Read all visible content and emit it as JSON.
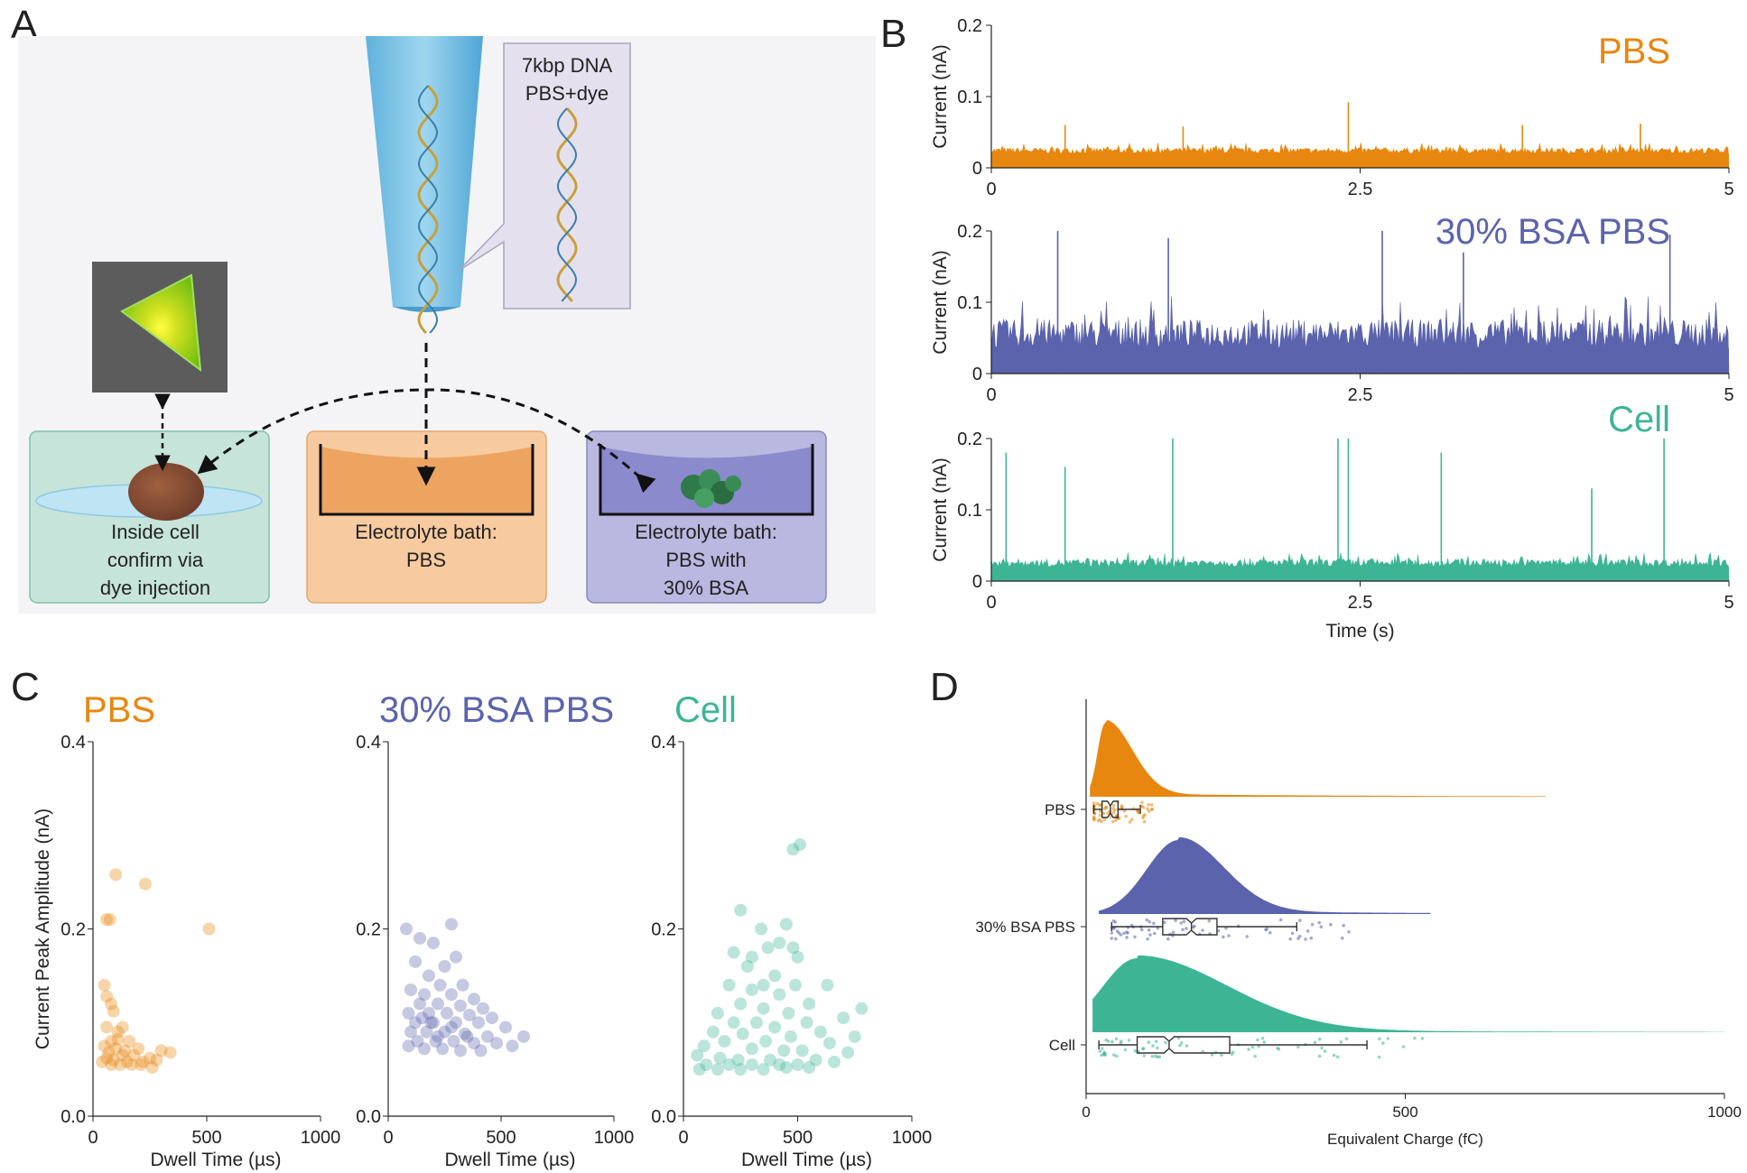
{
  "panel_labels": [
    "A",
    "B",
    "C",
    "D"
  ],
  "colors": {
    "PBS": "#e8870f",
    "BSA": "#5b63ad",
    "Cell": "#3db595"
  },
  "schematic": {
    "callout_lines": [
      "7kbp DNA",
      "PBS+dye"
    ],
    "boxes": [
      {
        "lines": [
          "Inside cell",
          "confirm via",
          "dye injection"
        ],
        "fill": "#c6e4d9",
        "border": "#7fc2a8"
      },
      {
        "lines": [
          "Electrolyte bath:",
          "PBS"
        ],
        "fill": "#f7caa0",
        "border": "#e7a86a"
      },
      {
        "lines": [
          "Electrolyte bath:",
          "PBS with",
          "30% BSA"
        ],
        "fill": "#b8b8e0",
        "border": "#8888c0"
      }
    ]
  },
  "chart_data": [
    {
      "panel": "B",
      "type": "line",
      "title": "PBS",
      "xlabel": "",
      "ylabel": "Current (nA)",
      "xlim": [
        0,
        5
      ],
      "ylim": [
        0,
        0.2
      ],
      "xticks": [
        "0",
        "2.5",
        "5"
      ],
      "yticks": [
        "0",
        "0.1",
        "0.2"
      ],
      "baseline_nA": 0.02,
      "noise_peak_nA": 0.035,
      "events": [
        {
          "t": 2.42,
          "i": 0.092
        },
        {
          "t": 0.5,
          "i": 0.06
        },
        {
          "t": 1.3,
          "i": 0.058
        },
        {
          "t": 3.6,
          "i": 0.06
        },
        {
          "t": 4.4,
          "i": 0.062
        }
      ]
    },
    {
      "panel": "B",
      "type": "line",
      "title": "30% BSA PBS",
      "xlabel": "",
      "ylabel": "Current (nA)",
      "xlim": [
        0,
        5
      ],
      "ylim": [
        0,
        0.2
      ],
      "xticks": [
        "0",
        "2.5",
        "5"
      ],
      "yticks": [
        "0",
        "0.1",
        "0.2"
      ],
      "baseline_nA": 0.035,
      "noise_peak_nA": 0.11,
      "events": [
        {
          "t": 0.45,
          "i": 0.2
        },
        {
          "t": 1.2,
          "i": 0.19
        },
        {
          "t": 2.65,
          "i": 0.2
        },
        {
          "t": 4.6,
          "i": 0.195
        },
        {
          "t": 3.2,
          "i": 0.17
        }
      ]
    },
    {
      "panel": "B",
      "type": "line",
      "title": "Cell",
      "xlabel": "Time (s)",
      "ylabel": "Current (nA)",
      "xlim": [
        0,
        5
      ],
      "ylim": [
        0,
        0.2
      ],
      "xticks": [
        "0",
        "2.5",
        "5"
      ],
      "yticks": [
        "0",
        "0.1",
        "0.2"
      ],
      "baseline_nA": 0.02,
      "noise_peak_nA": 0.04,
      "events": [
        {
          "t": 0.1,
          "i": 0.18
        },
        {
          "t": 1.23,
          "i": 0.2
        },
        {
          "t": 2.35,
          "i": 0.2
        },
        {
          "t": 2.42,
          "i": 0.2
        },
        {
          "t": 3.05,
          "i": 0.18
        },
        {
          "t": 4.56,
          "i": 0.2
        },
        {
          "t": 4.07,
          "i": 0.13
        },
        {
          "t": 0.5,
          "i": 0.16
        }
      ]
    },
    {
      "panel": "C",
      "type": "scatter",
      "title": "PBS",
      "xlabel": "Dwell Time (µs)",
      "ylabel": "Current Peak Amplitude (nA)",
      "xlim": [
        0,
        1000
      ],
      "ylim": [
        0,
        0.4
      ],
      "xticks": [
        "0",
        "500",
        "1000"
      ],
      "yticks": [
        "0.0",
        "0.2",
        "0.4"
      ],
      "points": [
        [
          100,
          0.258
        ],
        [
          230,
          0.248
        ],
        [
          510,
          0.2
        ],
        [
          60,
          0.21
        ],
        [
          75,
          0.21
        ],
        [
          50,
          0.14
        ],
        [
          60,
          0.128
        ],
        [
          80,
          0.12
        ],
        [
          90,
          0.112
        ],
        [
          60,
          0.095
        ],
        [
          130,
          0.095
        ],
        [
          110,
          0.09
        ],
        [
          80,
          0.08
        ],
        [
          110,
          0.082
        ],
        [
          160,
          0.08
        ],
        [
          50,
          0.075
        ],
        [
          100,
          0.072
        ],
        [
          200,
          0.072
        ],
        [
          300,
          0.07
        ],
        [
          340,
          0.068
        ],
        [
          70,
          0.068
        ],
        [
          130,
          0.065
        ],
        [
          180,
          0.065
        ],
        [
          250,
          0.062
        ],
        [
          60,
          0.062
        ],
        [
          90,
          0.06
        ],
        [
          150,
          0.058
        ],
        [
          220,
          0.058
        ],
        [
          280,
          0.06
        ],
        [
          40,
          0.058
        ],
        [
          120,
          0.055
        ],
        [
          170,
          0.055
        ],
        [
          210,
          0.055
        ],
        [
          80,
          0.055
        ],
        [
          260,
          0.052
        ],
        [
          140,
          0.07
        ]
      ]
    },
    {
      "panel": "C",
      "type": "scatter",
      "title": "30% BSA PBS",
      "xlabel": "Dwell Time (µs)",
      "ylabel": "",
      "xlim": [
        0,
        1000
      ],
      "ylim": [
        0,
        0.4
      ],
      "xticks": [
        "0",
        "500",
        "1000"
      ],
      "yticks": [
        "0.0",
        "0.2",
        "0.4"
      ],
      "points": [
        [
          80,
          0.2
        ],
        [
          280,
          0.205
        ],
        [
          140,
          0.19
        ],
        [
          200,
          0.185
        ],
        [
          120,
          0.165
        ],
        [
          250,
          0.16
        ],
        [
          300,
          0.17
        ],
        [
          180,
          0.15
        ],
        [
          230,
          0.14
        ],
        [
          330,
          0.14
        ],
        [
          100,
          0.135
        ],
        [
          160,
          0.13
        ],
        [
          280,
          0.13
        ],
        [
          380,
          0.125
        ],
        [
          140,
          0.12
        ],
        [
          220,
          0.12
        ],
        [
          320,
          0.118
        ],
        [
          420,
          0.115
        ],
        [
          90,
          0.11
        ],
        [
          180,
          0.11
        ],
        [
          260,
          0.11
        ],
        [
          360,
          0.108
        ],
        [
          460,
          0.105
        ],
        [
          120,
          0.1
        ],
        [
          200,
          0.1
        ],
        [
          300,
          0.1
        ],
        [
          400,
          0.1
        ],
        [
          520,
          0.095
        ],
        [
          100,
          0.09
        ],
        [
          170,
          0.09
        ],
        [
          250,
          0.09
        ],
        [
          340,
          0.088
        ],
        [
          440,
          0.085
        ],
        [
          600,
          0.085
        ],
        [
          130,
          0.08
        ],
        [
          210,
          0.08
        ],
        [
          290,
          0.08
        ],
        [
          380,
          0.078
        ],
        [
          480,
          0.078
        ],
        [
          90,
          0.075
        ],
        [
          160,
          0.072
        ],
        [
          240,
          0.072
        ],
        [
          320,
          0.07
        ],
        [
          410,
          0.07
        ],
        [
          550,
          0.075
        ],
        [
          190,
          0.1
        ],
        [
          280,
          0.095
        ],
        [
          350,
          0.085
        ],
        [
          220,
          0.085
        ],
        [
          150,
          0.105
        ]
      ]
    },
    {
      "panel": "C",
      "type": "scatter",
      "title": "Cell",
      "xlabel": "Dwell Time (µs)",
      "ylabel": "",
      "xlim": [
        0,
        1000
      ],
      "ylim": [
        0,
        0.4
      ],
      "xticks": [
        "0",
        "500",
        "1000"
      ],
      "yticks": [
        "0.0",
        "0.2",
        "0.4"
      ],
      "points": [
        [
          480,
          0.285
        ],
        [
          510,
          0.29
        ],
        [
          250,
          0.22
        ],
        [
          340,
          0.2
        ],
        [
          450,
          0.205
        ],
        [
          420,
          0.185
        ],
        [
          370,
          0.18
        ],
        [
          220,
          0.175
        ],
        [
          480,
          0.18
        ],
        [
          300,
          0.17
        ],
        [
          500,
          0.17
        ],
        [
          280,
          0.16
        ],
        [
          400,
          0.15
        ],
        [
          350,
          0.14
        ],
        [
          490,
          0.14
        ],
        [
          200,
          0.14
        ],
        [
          630,
          0.14
        ],
        [
          300,
          0.135
        ],
        [
          420,
          0.13
        ],
        [
          250,
          0.12
        ],
        [
          550,
          0.12
        ],
        [
          780,
          0.115
        ],
        [
          350,
          0.115
        ],
        [
          460,
          0.11
        ],
        [
          150,
          0.11
        ],
        [
          700,
          0.105
        ],
        [
          220,
          0.1
        ],
        [
          320,
          0.1
        ],
        [
          540,
          0.1
        ],
        [
          400,
          0.095
        ],
        [
          600,
          0.09
        ],
        [
          130,
          0.09
        ],
        [
          260,
          0.088
        ],
        [
          470,
          0.085
        ],
        [
          750,
          0.085
        ],
        [
          180,
          0.08
        ],
        [
          360,
          0.08
        ],
        [
          640,
          0.078
        ],
        [
          90,
          0.075
        ],
        [
          300,
          0.072
        ],
        [
          520,
          0.07
        ],
        [
          440,
          0.07
        ],
        [
          720,
          0.068
        ],
        [
          60,
          0.065
        ],
        [
          160,
          0.062
        ],
        [
          240,
          0.06
        ],
        [
          380,
          0.06
        ],
        [
          580,
          0.06
        ],
        [
          100,
          0.055
        ],
        [
          200,
          0.055
        ],
        [
          300,
          0.055
        ],
        [
          420,
          0.055
        ],
        [
          500,
          0.055
        ],
        [
          660,
          0.058
        ],
        [
          70,
          0.05
        ],
        [
          150,
          0.05
        ],
        [
          250,
          0.05
        ],
        [
          350,
          0.05
        ],
        [
          450,
          0.052
        ],
        [
          550,
          0.052
        ]
      ]
    },
    {
      "panel": "D",
      "type": "box",
      "title": "",
      "xlabel": "Equivalent Charge (fC)",
      "ylabel": "",
      "xlim": [
        0,
        1000
      ],
      "xticks": [
        "0",
        "500",
        "1000"
      ],
      "categories": [
        "PBS",
        "30% BSA PBS",
        "Cell"
      ],
      "series": [
        {
          "name": "PBS",
          "whisker_low": 12,
          "q1": 25,
          "median": 38,
          "q3": 50,
          "whisker_high": 85,
          "density_peak": 30
        },
        {
          "name": "30% BSA PBS",
          "whisker_low": 40,
          "q1": 120,
          "median": 165,
          "q3": 205,
          "whisker_high": 330,
          "density_peak": 145
        },
        {
          "name": "Cell",
          "whisker_low": 20,
          "q1": 80,
          "median": 130,
          "q3": 225,
          "whisker_high": 440,
          "density_peak": 80
        }
      ]
    }
  ]
}
